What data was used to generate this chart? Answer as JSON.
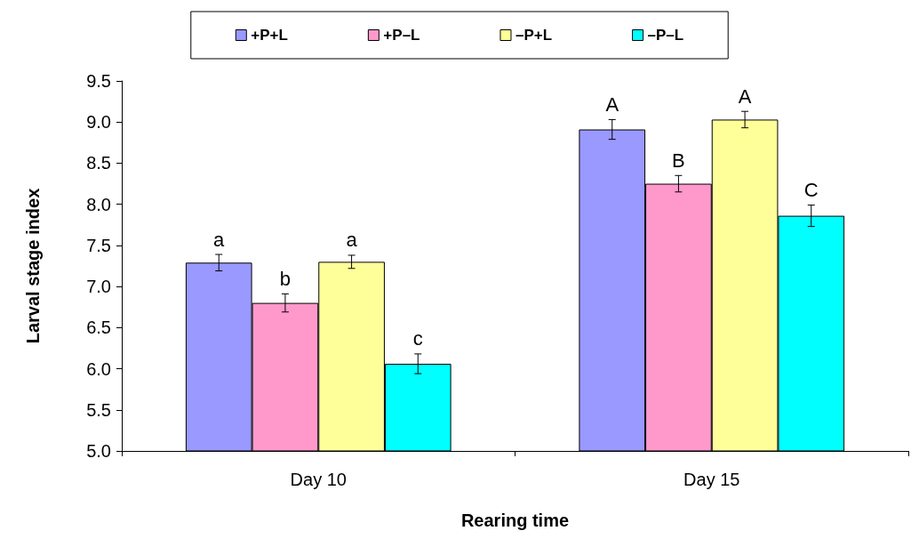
{
  "chart_data": {
    "type": "bar",
    "xlabel": "Rearing time",
    "ylabel": "Larval stage index",
    "categories": [
      "Day 10",
      "Day 15"
    ],
    "series": [
      {
        "name": "+P+L",
        "color": "#9999ff",
        "values": [
          7.29,
          8.91
        ],
        "errors": [
          0.1,
          0.12
        ]
      },
      {
        "name": "+P–L",
        "color": "#ff99cc",
        "values": [
          6.8,
          8.25
        ],
        "errors": [
          0.11,
          0.1
        ]
      },
      {
        "name": "–P+L",
        "color": "#ffff99",
        "values": [
          7.3,
          9.03
        ],
        "errors": [
          0.08,
          0.1
        ]
      },
      {
        "name": "–P–L",
        "color": "#00ffff",
        "values": [
          6.06,
          7.86
        ],
        "errors": [
          0.12,
          0.13
        ]
      }
    ],
    "annotations": [
      "a",
      "b",
      "a",
      "c",
      "A",
      "B",
      "A",
      "C"
    ],
    "ylim": [
      5.0,
      9.5
    ],
    "yticks": [
      {
        "value": 5,
        "label": "5.0"
      },
      5.5,
      {
        "value": 6,
        "label": "6.0"
      },
      6.5,
      {
        "value": 7,
        "label": "7.0"
      },
      7.5,
      {
        "value": 8,
        "label": "8.0"
      },
      8.5,
      {
        "value": 9,
        "label": "9.0"
      },
      9.5
    ],
    "grid": false,
    "legend": "top"
  }
}
